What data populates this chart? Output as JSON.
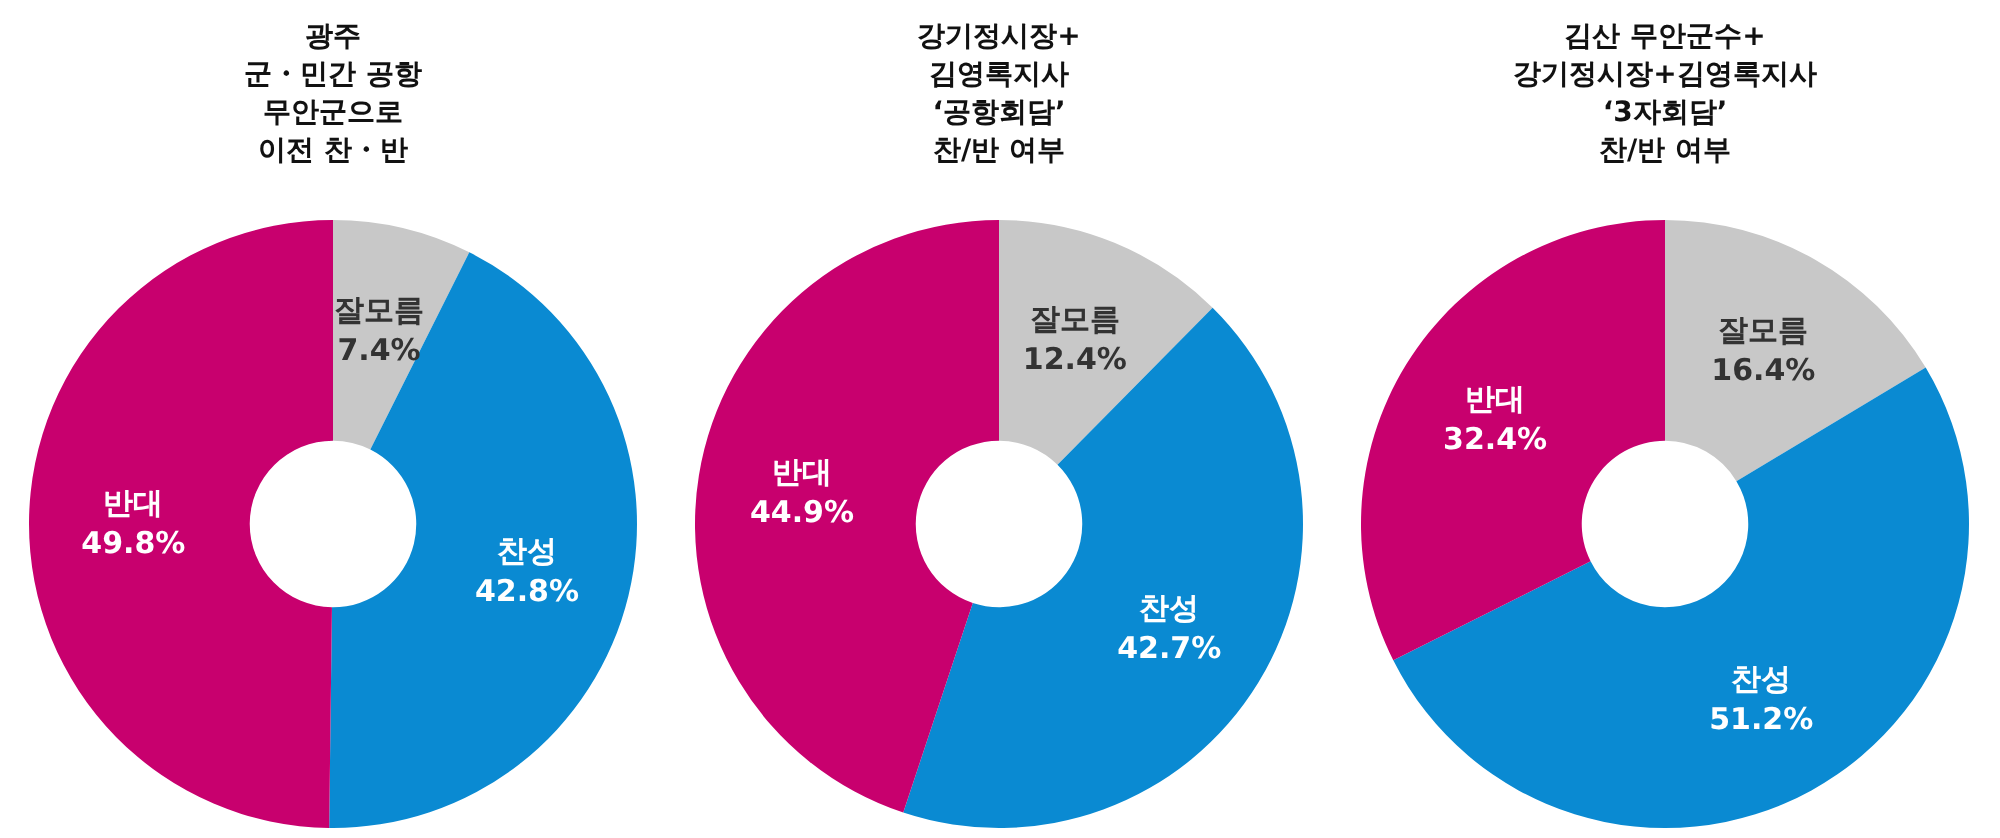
{
  "chart_data": [
    {
      "type": "donut",
      "title": "광주\n군・민간 공항\n무안군으로\n이전 찬・반",
      "categories": [
        "잘모름",
        "찬성",
        "반대"
      ],
      "values": [
        7.4,
        42.8,
        49.8
      ],
      "value_labels": [
        "7.4%",
        "42.8%",
        "49.8%"
      ],
      "colors": [
        "#c8c8c8",
        "#0a8ad2",
        "#c8006e"
      ],
      "legend": false
    },
    {
      "type": "donut",
      "title": "강기정시장+\n김영록지사\n‘공항회담’\n찬/반 여부",
      "categories": [
        "잘모름",
        "찬성",
        "반대"
      ],
      "values": [
        12.4,
        42.7,
        44.9
      ],
      "value_labels": [
        "12.4%",
        "42.7%",
        "44.9%"
      ],
      "colors": [
        "#c8c8c8",
        "#0a8ad2",
        "#c8006e"
      ],
      "legend": false
    },
    {
      "type": "donut",
      "title": "김산 무안군수+\n강기정시장+김영록지사\n‘3자회담’\n찬/반 여부",
      "categories": [
        "잘모름",
        "찬성",
        "반대"
      ],
      "values": [
        16.4,
        51.2,
        32.4
      ],
      "value_labels": [
        "16.4%",
        "51.2%",
        "32.4%"
      ],
      "colors": [
        "#c8c8c8",
        "#0a8ad2",
        "#c8006e"
      ],
      "legend": false
    }
  ]
}
